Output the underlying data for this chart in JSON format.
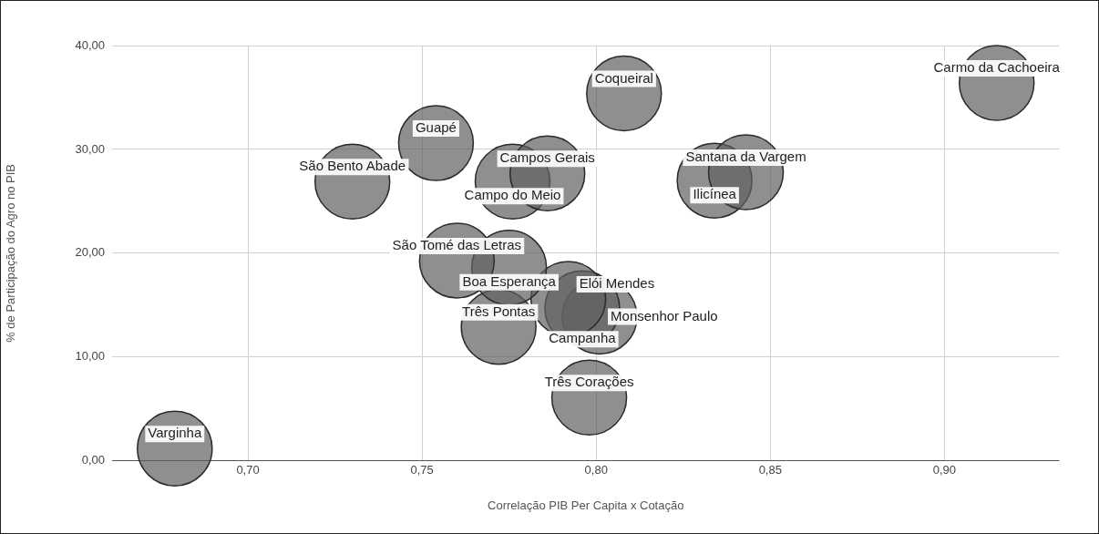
{
  "chart_data": {
    "type": "bubble",
    "xlabel": "Correlação PIB Per Capita x Cotação",
    "ylabel": "% de Participação do Agro no PIB",
    "xlim": [
      0.661,
      0.933
    ],
    "xticks": [
      {
        "value": 0.7,
        "label": "0,70"
      },
      {
        "value": 0.75,
        "label": "0,75"
      },
      {
        "value": 0.8,
        "label": "0,80"
      },
      {
        "value": 0.85,
        "label": "0,85"
      },
      {
        "value": 0.9,
        "label": "0,90"
      }
    ],
    "ylim": [
      0,
      40
    ],
    "yticks": [
      {
        "value": 0,
        "label": "0,00"
      },
      {
        "value": 10,
        "label": "10,00"
      },
      {
        "value": 20,
        "label": "20,00"
      },
      {
        "value": 30,
        "label": "30,00"
      },
      {
        "value": 40,
        "label": "40,00"
      }
    ],
    "grid": true,
    "legend": false,
    "series": [
      {
        "name": "Varginha",
        "color": "#606060",
        "x": [
          0.679
        ],
        "values": [
          1.2
        ],
        "sizes": [
          1
        ]
      },
      {
        "name": "São Bento Abade",
        "color": "#606060",
        "x": [
          0.73
        ],
        "values": [
          26.9
        ],
        "sizes": [
          1
        ]
      },
      {
        "name": "Guapé",
        "color": "#606060",
        "x": [
          0.754
        ],
        "values": [
          30.6
        ],
        "sizes": [
          1
        ]
      },
      {
        "name": "Campos Gerais",
        "color": "#606060",
        "x": [
          0.786
        ],
        "values": [
          27.7
        ],
        "sizes": [
          1
        ]
      },
      {
        "name": "Campo do Meio",
        "color": "#606060",
        "x": [
          0.776
        ],
        "values": [
          26.9
        ],
        "sizes": [
          1
        ]
      },
      {
        "name": "Coqueiral",
        "color": "#606060",
        "x": [
          0.808
        ],
        "values": [
          35.4
        ],
        "sizes": [
          1
        ]
      },
      {
        "name": "Santana da Vargem",
        "color": "#606060",
        "x": [
          0.843
        ],
        "values": [
          27.8
        ],
        "sizes": [
          1
        ]
      },
      {
        "name": "Ilicínea",
        "color": "#606060",
        "x": [
          0.834
        ],
        "values": [
          27.0
        ],
        "sizes": [
          1
        ]
      },
      {
        "name": "Carmo da Cachoeira",
        "color": "#606060",
        "x": [
          0.915
        ],
        "values": [
          36.4
        ],
        "sizes": [
          1
        ]
      },
      {
        "name": "São Tomé das Letras",
        "color": "#606060",
        "x": [
          0.76
        ],
        "values": [
          19.3
        ],
        "sizes": [
          1
        ]
      },
      {
        "name": "Boa Esperança",
        "color": "#606060",
        "x": [
          0.775
        ],
        "values": [
          18.6
        ],
        "sizes": [
          1
        ]
      },
      {
        "name": "Três Pontas",
        "color": "#606060",
        "x": [
          0.772
        ],
        "values": [
          12.9
        ],
        "sizes": [
          1
        ]
      },
      {
        "name": "Elói Mendes",
        "color": "#606060",
        "x": [
          0.792
        ],
        "values": [
          15.6
        ],
        "sizes": [
          1
        ]
      },
      {
        "name": "Campanha",
        "color": "#606060",
        "x": [
          0.796
        ],
        "values": [
          14.7
        ],
        "sizes": [
          1
        ]
      },
      {
        "name": "Monsenhor Paulo",
        "color": "#606060",
        "x": [
          0.801
        ],
        "values": [
          13.9
        ],
        "sizes": [
          1
        ]
      },
      {
        "name": "Três Corações",
        "color": "#606060",
        "x": [
          0.798
        ],
        "values": [
          6.1
        ],
        "sizes": [
          1
        ]
      }
    ]
  }
}
